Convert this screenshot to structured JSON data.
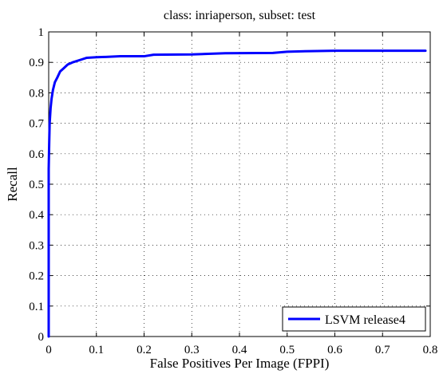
{
  "chart_data": {
    "type": "line",
    "title": "class: inriaperson, subset: test",
    "xlabel": "False Positives Per Image (FPPI)",
    "ylabel": "Recall",
    "xlim": [
      0,
      0.8
    ],
    "ylim": [
      0,
      1
    ],
    "xticks": [
      0,
      0.1,
      0.2,
      0.3,
      0.4,
      0.5,
      0.6,
      0.7,
      0.8
    ],
    "yticks": [
      0,
      0.1,
      0.2,
      0.3,
      0.4,
      0.5,
      0.6,
      0.7,
      0.8,
      0.9,
      1
    ],
    "xtick_labels": [
      "0",
      "0.1",
      "0.2",
      "0.3",
      "0.4",
      "0.5",
      "0.6",
      "0.7",
      "0.8"
    ],
    "ytick_labels": [
      "0",
      "0.1",
      "0.2",
      "0.3",
      "0.4",
      "0.5",
      "0.6",
      "0.7",
      "0.8",
      "0.9",
      "1"
    ],
    "grid": true,
    "legend_position": "bottom-right",
    "series": [
      {
        "name": "LSVM release4",
        "color": "#0000ff",
        "x": [
          0,
          0,
          0.001,
          0.002,
          0.004,
          0.006,
          0.009,
          0.013,
          0.018,
          0.024,
          0.031,
          0.04,
          0.05,
          0.06,
          0.07,
          0.08,
          0.1,
          0.12,
          0.15,
          0.2,
          0.22,
          0.3,
          0.37,
          0.47,
          0.5,
          0.55,
          0.6,
          0.7,
          0.79
        ],
        "y": [
          0,
          0.55,
          0.63,
          0.7,
          0.75,
          0.78,
          0.81,
          0.835,
          0.85,
          0.87,
          0.88,
          0.893,
          0.9,
          0.905,
          0.91,
          0.915,
          0.917,
          0.918,
          0.92,
          0.92,
          0.925,
          0.926,
          0.93,
          0.931,
          0.935,
          0.937,
          0.938,
          0.938,
          0.938
        ]
      }
    ]
  }
}
